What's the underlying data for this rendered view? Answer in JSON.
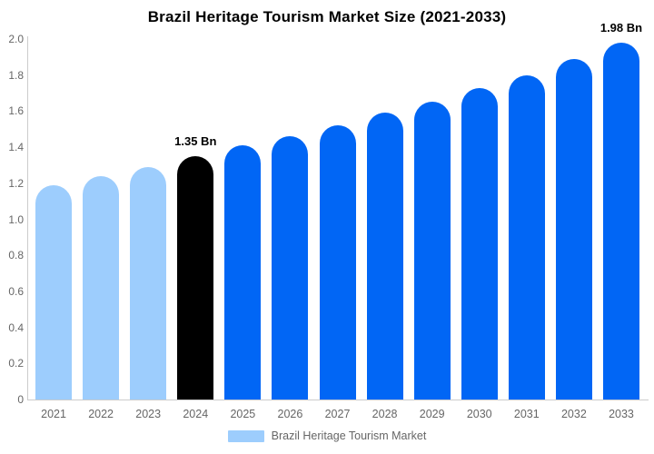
{
  "title": "Brazil Heritage Tourism Market Size (2021-2033)",
  "legend": {
    "label": "Brazil Heritage Tourism Market"
  },
  "colors": {
    "bar_light": "#9DCDFD",
    "bar_primary": "#0166F5",
    "bar_highlight": "#000000",
    "axis_line": "#CCCCCC",
    "tick_text": "#666666",
    "annotation_text": "#000000",
    "legend_text": "#666666",
    "legend_swatch": "#9DCDFD"
  },
  "chart_data": {
    "type": "bar",
    "title": "Brazil Heritage Tourism Market Size (2021-2033)",
    "categories": [
      "2021",
      "2022",
      "2023",
      "2024",
      "2025",
      "2026",
      "2027",
      "2028",
      "2029",
      "2030",
      "2031",
      "2032",
      "2033"
    ],
    "series": [
      {
        "name": "Brazil Heritage Tourism Market",
        "values": [
          1.19,
          1.24,
          1.29,
          1.35,
          1.41,
          1.46,
          1.52,
          1.59,
          1.65,
          1.73,
          1.8,
          1.89,
          1.98
        ]
      }
    ],
    "bar_color_roles": [
      "light",
      "light",
      "light",
      "highlight",
      "primary",
      "primary",
      "primary",
      "primary",
      "primary",
      "primary",
      "primary",
      "primary",
      "primary"
    ],
    "annotations": [
      {
        "category": "2024",
        "text": "1.35 Bn"
      },
      {
        "category": "2033",
        "text": "1.98 Bn"
      }
    ],
    "xlabel": "",
    "ylabel": "",
    "ylim": [
      0,
      2
    ],
    "ytick_labels": [
      "0",
      "0.2",
      "0.4",
      "0.6",
      "0.8",
      "1.0",
      "1.2",
      "1.4",
      "1.6",
      "1.8",
      "2.0"
    ],
    "grid": false,
    "legend_position": "bottom"
  }
}
